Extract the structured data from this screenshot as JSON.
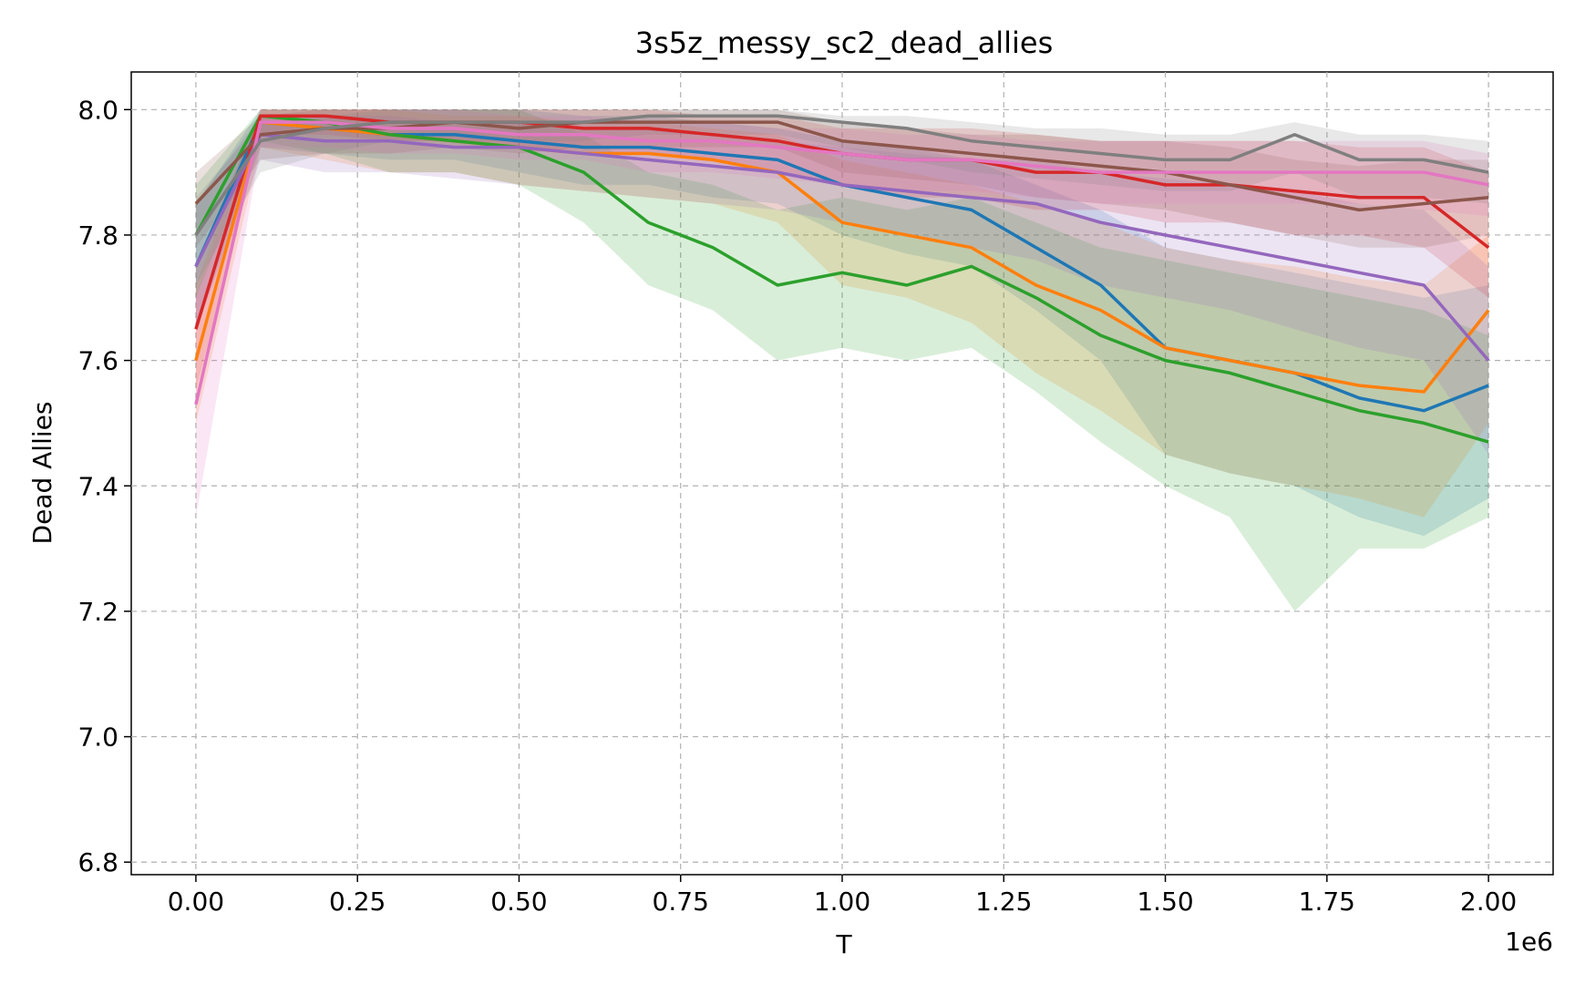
{
  "chart_data": {
    "type": "line",
    "title": "3s5z_messy_sc2_dead_allies",
    "xlabel": "T",
    "ylabel": "Dead Allies",
    "x_offset_label": "1e6",
    "xlim": [
      -0.1,
      2.1
    ],
    "ylim": [
      6.78,
      8.06
    ],
    "xticks": [
      0.0,
      0.25,
      0.5,
      0.75,
      1.0,
      1.25,
      1.5,
      1.75,
      2.0
    ],
    "xtick_labels": [
      "0.00",
      "0.25",
      "0.50",
      "0.75",
      "1.00",
      "1.25",
      "1.50",
      "1.75",
      "2.00"
    ],
    "yticks": [
      6.8,
      7.0,
      7.2,
      7.4,
      7.6,
      7.8,
      8.0
    ],
    "ytick_labels": [
      "6.8",
      "7.0",
      "7.2",
      "7.4",
      "7.6",
      "7.8",
      "8.0"
    ],
    "grid": true,
    "legend": "none",
    "x": [
      0.0,
      0.1,
      0.2,
      0.3,
      0.4,
      0.5,
      0.6,
      0.7,
      0.8,
      0.9,
      1.0,
      1.1,
      1.2,
      1.3,
      1.4,
      1.5,
      1.6,
      1.7,
      1.8,
      1.9,
      2.0
    ],
    "series": [
      {
        "color": "#1f77b4",
        "values": [
          7.75,
          7.98,
          7.97,
          7.96,
          7.96,
          7.95,
          7.94,
          7.94,
          7.93,
          7.92,
          7.88,
          7.86,
          7.84,
          7.78,
          7.72,
          7.62,
          7.6,
          7.58,
          7.54,
          7.52,
          7.56
        ],
        "low": [
          7.65,
          7.94,
          7.93,
          7.92,
          7.92,
          7.9,
          7.88,
          7.88,
          7.86,
          7.85,
          7.8,
          7.77,
          7.75,
          7.68,
          7.6,
          7.45,
          7.42,
          7.4,
          7.35,
          7.32,
          7.38
        ],
        "high": [
          7.85,
          8.0,
          8.0,
          8.0,
          8.0,
          8.0,
          7.99,
          7.99,
          7.98,
          7.97,
          7.95,
          7.94,
          7.92,
          7.88,
          7.84,
          7.78,
          7.76,
          7.74,
          7.72,
          7.7,
          7.72
        ]
      },
      {
        "color": "#ff7f0e",
        "values": [
          7.6,
          7.98,
          7.97,
          7.96,
          7.95,
          7.94,
          7.93,
          7.93,
          7.92,
          7.9,
          7.82,
          7.8,
          7.78,
          7.72,
          7.68,
          7.62,
          7.6,
          7.58,
          7.56,
          7.55,
          7.68
        ],
        "low": [
          7.5,
          7.94,
          7.92,
          7.9,
          7.9,
          7.88,
          7.87,
          7.86,
          7.85,
          7.82,
          7.72,
          7.7,
          7.66,
          7.58,
          7.52,
          7.45,
          7.42,
          7.4,
          7.38,
          7.35,
          7.5
        ],
        "high": [
          7.72,
          8.0,
          8.0,
          8.0,
          7.99,
          7.99,
          7.98,
          7.98,
          7.97,
          7.96,
          7.92,
          7.9,
          7.88,
          7.85,
          7.82,
          7.78,
          7.76,
          7.75,
          7.73,
          7.72,
          7.8
        ]
      },
      {
        "color": "#2ca02c",
        "values": [
          7.8,
          7.99,
          7.98,
          7.96,
          7.95,
          7.94,
          7.9,
          7.82,
          7.78,
          7.72,
          7.74,
          7.72,
          7.75,
          7.7,
          7.64,
          7.6,
          7.58,
          7.55,
          7.52,
          7.5,
          7.47
        ],
        "low": [
          7.7,
          7.95,
          7.93,
          7.9,
          7.9,
          7.88,
          7.82,
          7.72,
          7.68,
          7.6,
          7.62,
          7.6,
          7.62,
          7.55,
          7.47,
          7.4,
          7.35,
          7.2,
          7.3,
          7.3,
          7.35
        ],
        "high": [
          7.88,
          8.0,
          8.0,
          8.0,
          8.0,
          8.0,
          7.96,
          7.9,
          7.88,
          7.84,
          7.86,
          7.84,
          7.86,
          7.82,
          7.78,
          7.76,
          7.74,
          7.72,
          7.7,
          7.68,
          7.64
        ]
      },
      {
        "color": "#d62728",
        "values": [
          7.65,
          7.99,
          7.99,
          7.98,
          7.98,
          7.98,
          7.97,
          7.97,
          7.96,
          7.95,
          7.93,
          7.92,
          7.92,
          7.9,
          7.9,
          7.88,
          7.88,
          7.87,
          7.86,
          7.86,
          7.78
        ],
        "low": [
          7.55,
          7.96,
          7.96,
          7.95,
          7.95,
          7.94,
          7.93,
          7.93,
          7.92,
          7.9,
          7.88,
          7.86,
          7.86,
          7.84,
          7.84,
          7.82,
          7.82,
          7.8,
          7.8,
          7.78,
          7.7
        ],
        "high": [
          7.75,
          8.0,
          8.0,
          8.0,
          8.0,
          8.0,
          8.0,
          8.0,
          7.99,
          7.99,
          7.97,
          7.97,
          7.97,
          7.96,
          7.95,
          7.95,
          7.95,
          7.95,
          7.94,
          7.94,
          7.9
        ]
      },
      {
        "color": "#9467bd",
        "values": [
          7.75,
          7.96,
          7.95,
          7.95,
          7.94,
          7.94,
          7.93,
          7.92,
          7.91,
          7.9,
          7.88,
          7.87,
          7.86,
          7.85,
          7.82,
          7.8,
          7.78,
          7.76,
          7.74,
          7.72,
          7.6
        ],
        "low": [
          7.65,
          7.92,
          7.9,
          7.9,
          7.89,
          7.88,
          7.87,
          7.86,
          7.85,
          7.84,
          7.82,
          7.8,
          7.78,
          7.76,
          7.72,
          7.7,
          7.68,
          7.65,
          7.62,
          7.6,
          7.45
        ],
        "high": [
          7.85,
          7.99,
          7.99,
          7.99,
          7.98,
          7.98,
          7.97,
          7.97,
          7.96,
          7.95,
          7.94,
          7.93,
          7.92,
          7.92,
          7.9,
          7.89,
          7.88,
          7.87,
          7.85,
          7.84,
          7.75
        ]
      },
      {
        "color": "#8c564b",
        "values": [
          7.85,
          7.96,
          7.97,
          7.97,
          7.98,
          7.97,
          7.98,
          7.98,
          7.98,
          7.98,
          7.95,
          7.94,
          7.93,
          7.92,
          7.91,
          7.9,
          7.88,
          7.86,
          7.84,
          7.85,
          7.86
        ],
        "low": [
          7.78,
          7.92,
          7.93,
          7.93,
          7.94,
          7.93,
          7.94,
          7.94,
          7.94,
          7.94,
          7.9,
          7.89,
          7.88,
          7.86,
          7.85,
          7.84,
          7.82,
          7.8,
          7.78,
          7.78,
          7.8
        ],
        "high": [
          7.9,
          7.99,
          8.0,
          8.0,
          8.0,
          8.0,
          8.0,
          8.0,
          8.0,
          8.0,
          7.98,
          7.97,
          7.96,
          7.96,
          7.95,
          7.95,
          7.94,
          7.92,
          7.91,
          7.92,
          7.92
        ]
      },
      {
        "color": "#e377c2",
        "values": [
          7.53,
          7.98,
          7.98,
          7.97,
          7.97,
          7.96,
          7.96,
          7.95,
          7.95,
          7.94,
          7.93,
          7.92,
          7.92,
          7.91,
          7.9,
          7.9,
          7.9,
          7.9,
          7.9,
          7.9,
          7.88
        ],
        "low": [
          7.35,
          7.94,
          7.94,
          7.93,
          7.93,
          7.92,
          7.92,
          7.9,
          7.9,
          7.89,
          7.88,
          7.87,
          7.87,
          7.86,
          7.85,
          7.85,
          7.85,
          7.85,
          7.85,
          7.84,
          7.83
        ],
        "high": [
          7.7,
          8.0,
          8.0,
          8.0,
          8.0,
          7.99,
          7.99,
          7.98,
          7.98,
          7.97,
          7.97,
          7.96,
          7.96,
          7.95,
          7.95,
          7.95,
          7.95,
          7.95,
          7.95,
          7.95,
          7.93
        ]
      },
      {
        "color": "#7f7f7f",
        "values": [
          7.8,
          7.95,
          7.97,
          7.98,
          7.98,
          7.98,
          7.98,
          7.99,
          7.99,
          7.99,
          7.98,
          7.97,
          7.95,
          7.94,
          7.93,
          7.92,
          7.92,
          7.96,
          7.92,
          7.92,
          7.9
        ],
        "low": [
          7.72,
          7.9,
          7.93,
          7.95,
          7.95,
          7.95,
          7.95,
          7.96,
          7.96,
          7.96,
          7.94,
          7.92,
          7.9,
          7.89,
          7.88,
          7.87,
          7.87,
          7.9,
          7.86,
          7.86,
          7.85
        ],
        "high": [
          7.86,
          7.98,
          7.99,
          8.0,
          8.0,
          8.0,
          8.0,
          8.0,
          8.0,
          8.0,
          7.99,
          7.99,
          7.98,
          7.97,
          7.97,
          7.96,
          7.96,
          7.98,
          7.96,
          7.96,
          7.95
        ]
      }
    ]
  }
}
